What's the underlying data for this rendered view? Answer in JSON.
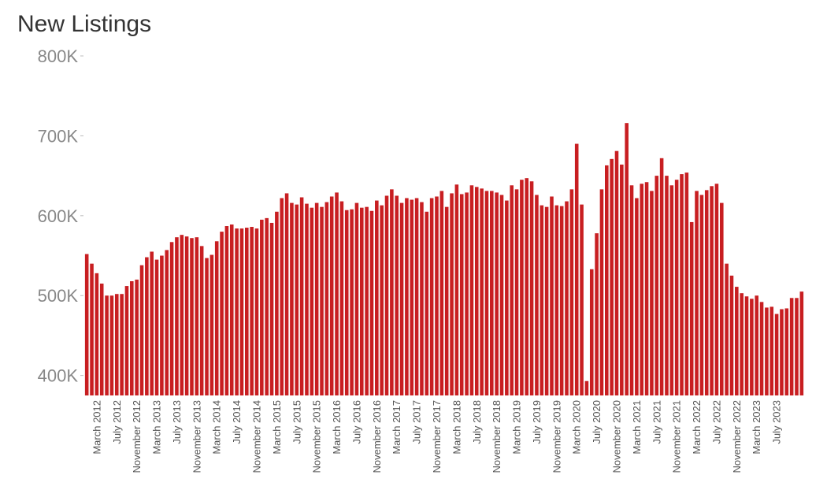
{
  "chart_data": {
    "type": "bar",
    "title": "New Listings",
    "xlabel": "",
    "ylabel": "",
    "color": "#c81e21",
    "ylim": [
      375000,
      800000
    ],
    "yticks": [
      400000,
      500000,
      600000,
      700000,
      800000
    ],
    "ytick_labels": [
      "400K",
      "500K",
      "600K",
      "700K",
      "800K"
    ],
    "grid": false,
    "categories": [
      "January 2012",
      "February 2012",
      "March 2012",
      "April 2012",
      "May 2012",
      "June 2012",
      "July 2012",
      "August 2012",
      "September 2012",
      "October 2012",
      "November 2012",
      "December 2012",
      "January 2013",
      "February 2013",
      "March 2013",
      "April 2013",
      "May 2013",
      "June 2013",
      "July 2013",
      "August 2013",
      "September 2013",
      "October 2013",
      "November 2013",
      "December 2013",
      "January 2014",
      "February 2014",
      "March 2014",
      "April 2014",
      "May 2014",
      "June 2014",
      "July 2014",
      "August 2014",
      "September 2014",
      "October 2014",
      "November 2014",
      "December 2014",
      "January 2015",
      "February 2015",
      "March 2015",
      "April 2015",
      "May 2015",
      "June 2015",
      "July 2015",
      "August 2015",
      "September 2015",
      "October 2015",
      "November 2015",
      "December 2015",
      "January 2016",
      "February 2016",
      "March 2016",
      "April 2016",
      "May 2016",
      "June 2016",
      "July 2016",
      "August 2016",
      "September 2016",
      "October 2016",
      "November 2016",
      "December 2016",
      "January 2017",
      "February 2017",
      "March 2017",
      "April 2017",
      "May 2017",
      "June 2017",
      "July 2017",
      "August 2017",
      "September 2017",
      "October 2017",
      "November 2017",
      "December 2017",
      "January 2018",
      "February 2018",
      "March 2018",
      "April 2018",
      "May 2018",
      "June 2018",
      "July 2018",
      "August 2018",
      "September 2018",
      "October 2018",
      "November 2018",
      "December 2018",
      "January 2019",
      "February 2019",
      "March 2019",
      "April 2019",
      "May 2019",
      "June 2019",
      "July 2019",
      "August 2019",
      "September 2019",
      "October 2019",
      "November 2019",
      "December 2019",
      "January 2020",
      "February 2020",
      "March 2020",
      "April 2020",
      "May 2020",
      "June 2020",
      "July 2020",
      "August 2020",
      "September 2020",
      "October 2020",
      "November 2020",
      "December 2020",
      "January 2021",
      "February 2021",
      "March 2021",
      "April 2021",
      "May 2021",
      "June 2021",
      "July 2021",
      "August 2021",
      "September 2021",
      "October 2021",
      "November 2021",
      "December 2021",
      "January 2022",
      "February 2022",
      "March 2022",
      "April 2022",
      "May 2022",
      "June 2022",
      "July 2022",
      "August 2022",
      "September 2022",
      "October 2022",
      "November 2022",
      "December 2022",
      "January 2023",
      "February 2023",
      "March 2023",
      "April 2023",
      "May 2023",
      "June 2023",
      "July 2023",
      "August 2023",
      "September 2023",
      "October 2023",
      "November 2023",
      "December 2023"
    ],
    "x_tick_labels": [
      "March 2012",
      "July 2012",
      "November 2012",
      "March 2013",
      "July 2013",
      "November 2013",
      "March 2014",
      "July 2014",
      "November 2014",
      "March 2015",
      "July 2015",
      "November 2015",
      "March 2016",
      "July 2016",
      "November 2016",
      "March 2017",
      "July 2017",
      "November 2017",
      "March 2018",
      "July 2018",
      "November 2018",
      "March 2019",
      "July 2019",
      "November 2019",
      "March 2020",
      "July 2020",
      "November 2020",
      "March 2021",
      "July 2021",
      "November 2021",
      "March 2022",
      "July 2022",
      "November 2022",
      "March 2023",
      "July 2023"
    ],
    "values": [
      552000,
      540000,
      528000,
      515000,
      500000,
      500000,
      502000,
      502000,
      512000,
      518000,
      520000,
      538000,
      548000,
      555000,
      545000,
      550000,
      557000,
      567000,
      573000,
      576000,
      574000,
      572000,
      573000,
      562000,
      547000,
      551000,
      568000,
      580000,
      587000,
      589000,
      584000,
      584000,
      585000,
      586000,
      584000,
      595000,
      597000,
      591000,
      605000,
      622000,
      628000,
      616000,
      614000,
      623000,
      615000,
      610000,
      616000,
      611000,
      617000,
      624000,
      629000,
      618000,
      607000,
      608000,
      616000,
      610000,
      611000,
      606000,
      619000,
      613000,
      625000,
      633000,
      625000,
      616000,
      622000,
      620000,
      622000,
      617000,
      605000,
      622000,
      624000,
      631000,
      611000,
      628000,
      639000,
      627000,
      629000,
      638000,
      636000,
      634000,
      631000,
      631000,
      629000,
      626000,
      619000,
      638000,
      633000,
      645000,
      647000,
      643000,
      626000,
      613000,
      611000,
      624000,
      613000,
      612000,
      618000,
      633000,
      690000,
      614000,
      393000,
      533000,
      578000,
      633000,
      663000,
      671000,
      681000,
      664000,
      716000,
      638000,
      622000,
      640000,
      642000,
      631000,
      650000,
      672000,
      650000,
      638000,
      645000,
      652000,
      654000,
      592000,
      631000,
      626000,
      632000,
      637000,
      640000,
      616000,
      540000,
      525000,
      511000,
      503000,
      499000,
      496000,
      500000,
      492000,
      485000,
      486000,
      477000,
      483000,
      484000,
      497000,
      497000,
      505000
    ]
  }
}
